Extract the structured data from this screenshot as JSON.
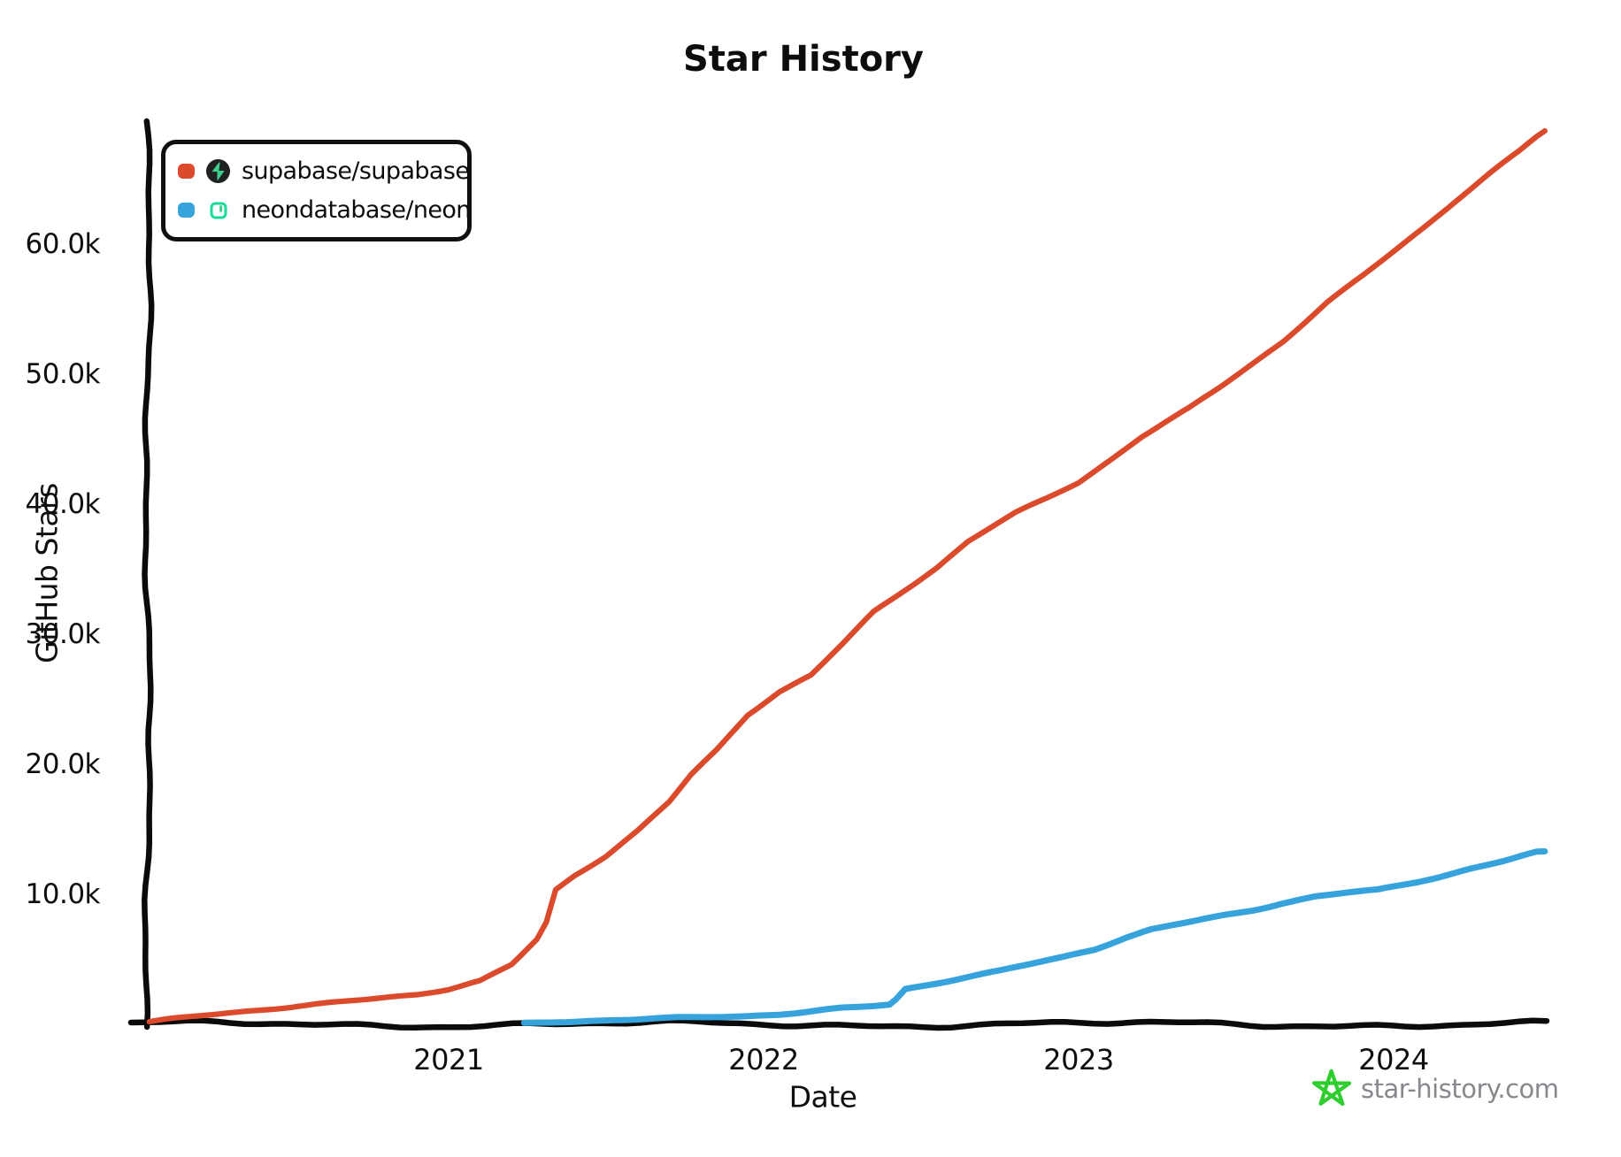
{
  "title": "Star History",
  "legend": {
    "items": [
      {
        "label": "supabase/supabase",
        "color": "#DB4A2B",
        "icon": "supabase-logo"
      },
      {
        "label": "neondatabase/neon",
        "color": "#36A3DC",
        "icon": "neon-logo"
      }
    ]
  },
  "axes": {
    "y_label": "GitHub Stars",
    "x_label": "Date",
    "y_ticks": [
      {
        "label": "10.0k",
        "value": 10000
      },
      {
        "label": "20.0k",
        "value": 20000
      },
      {
        "label": "30.0k",
        "value": 30000
      },
      {
        "label": "40.0k",
        "value": 40000
      },
      {
        "label": "50.0k",
        "value": 50000
      },
      {
        "label": "60.0k",
        "value": 60000
      }
    ],
    "x_ticks": [
      {
        "label": "2021",
        "value": 2021
      },
      {
        "label": "2022",
        "value": 2022
      },
      {
        "label": "2023",
        "value": 2023
      },
      {
        "label": "2024",
        "value": 2024
      }
    ]
  },
  "footer": {
    "brand": "star-history.com",
    "star_color": "#2FCE2F"
  },
  "chart_data": {
    "type": "line",
    "title": "Star History",
    "xlabel": "Date",
    "ylabel": "GitHub Stars",
    "xlim": [
      2020.04,
      2024.55
    ],
    "ylim": [
      0,
      69500
    ],
    "x_ticks": [
      2021,
      2022,
      2023,
      2024
    ],
    "y_ticks": [
      10000,
      20000,
      30000,
      40000,
      50000,
      60000
    ],
    "grid": false,
    "legend_position": "top-left",
    "series": [
      {
        "name": "supabase/supabase",
        "color": "#DB4A2B",
        "points": [
          [
            2020.05,
            100
          ],
          [
            2020.15,
            400
          ],
          [
            2020.3,
            800
          ],
          [
            2020.45,
            1200
          ],
          [
            2020.6,
            1600
          ],
          [
            2020.75,
            2000
          ],
          [
            2020.9,
            2400
          ],
          [
            2021.0,
            2800
          ],
          [
            2021.1,
            3400
          ],
          [
            2021.2,
            4600
          ],
          [
            2021.28,
            6500
          ],
          [
            2021.31,
            7800
          ],
          [
            2021.34,
            10300
          ],
          [
            2021.4,
            11400
          ],
          [
            2021.5,
            12900
          ],
          [
            2021.6,
            14800
          ],
          [
            2021.7,
            17000
          ],
          [
            2021.77,
            19100
          ],
          [
            2021.85,
            21000
          ],
          [
            2021.95,
            23800
          ],
          [
            2022.05,
            25600
          ],
          [
            2022.15,
            26900
          ],
          [
            2022.25,
            29300
          ],
          [
            2022.35,
            31800
          ],
          [
            2022.45,
            33500
          ],
          [
            2022.55,
            35200
          ],
          [
            2022.65,
            37200
          ],
          [
            2022.72,
            38200
          ],
          [
            2022.8,
            39300
          ],
          [
            2022.9,
            40400
          ],
          [
            2023.0,
            41600
          ],
          [
            2023.1,
            43300
          ],
          [
            2023.2,
            45100
          ],
          [
            2023.35,
            47300
          ],
          [
            2023.45,
            49000
          ],
          [
            2023.55,
            50800
          ],
          [
            2023.65,
            52600
          ],
          [
            2023.79,
            55600
          ],
          [
            2023.9,
            57600
          ],
          [
            2024.0,
            59500
          ],
          [
            2024.1,
            61400
          ],
          [
            2024.2,
            63400
          ],
          [
            2024.3,
            65300
          ],
          [
            2024.4,
            67100
          ],
          [
            2024.48,
            68700
          ]
        ]
      },
      {
        "name": "neondatabase/neon",
        "color": "#36A3DC",
        "points": [
          [
            2021.24,
            60
          ],
          [
            2021.35,
            150
          ],
          [
            2021.5,
            250
          ],
          [
            2021.65,
            350
          ],
          [
            2021.8,
            450
          ],
          [
            2021.95,
            620
          ],
          [
            2022.05,
            800
          ],
          [
            2022.15,
            1050
          ],
          [
            2022.25,
            1300
          ],
          [
            2022.33,
            1450
          ],
          [
            2022.4,
            1600
          ],
          [
            2022.42,
            2000
          ],
          [
            2022.45,
            2800
          ],
          [
            2022.55,
            3250
          ],
          [
            2022.65,
            3700
          ],
          [
            2022.75,
            4100
          ],
          [
            2022.85,
            4600
          ],
          [
            2022.95,
            5100
          ],
          [
            2023.05,
            5700
          ],
          [
            2023.15,
            6600
          ],
          [
            2023.23,
            7200
          ],
          [
            2023.35,
            7800
          ],
          [
            2023.45,
            8300
          ],
          [
            2023.55,
            8800
          ],
          [
            2023.65,
            9400
          ],
          [
            2023.75,
            9900
          ],
          [
            2023.85,
            10200
          ],
          [
            2023.95,
            10400
          ],
          [
            2024.05,
            10900
          ],
          [
            2024.15,
            11400
          ],
          [
            2024.25,
            12000
          ],
          [
            2024.35,
            12500
          ],
          [
            2024.48,
            13300
          ]
        ]
      }
    ]
  }
}
